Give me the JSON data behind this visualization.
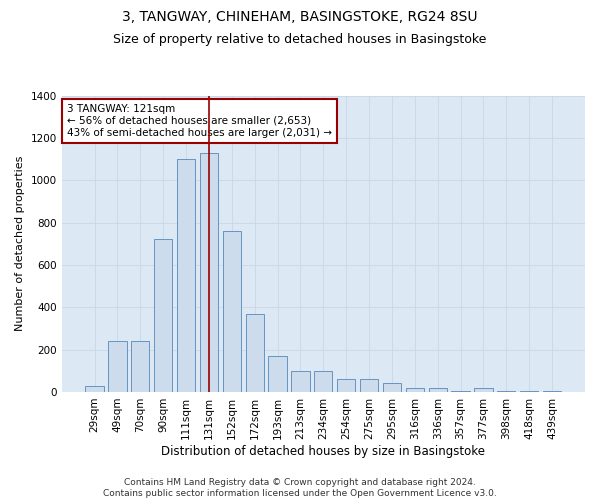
{
  "title1": "3, TANGWAY, CHINEHAM, BASINGSTOKE, RG24 8SU",
  "title2": "Size of property relative to detached houses in Basingstoke",
  "xlabel": "Distribution of detached houses by size in Basingstoke",
  "ylabel": "Number of detached properties",
  "categories": [
    "29sqm",
    "49sqm",
    "70sqm",
    "90sqm",
    "111sqm",
    "131sqm",
    "152sqm",
    "172sqm",
    "193sqm",
    "213sqm",
    "234sqm",
    "254sqm",
    "275sqm",
    "295sqm",
    "316sqm",
    "336sqm",
    "357sqm",
    "377sqm",
    "398sqm",
    "418sqm",
    "439sqm"
  ],
  "values": [
    30,
    240,
    240,
    720,
    1100,
    1130,
    760,
    370,
    170,
    100,
    100,
    60,
    60,
    40,
    20,
    20,
    5,
    20,
    5,
    5,
    5
  ],
  "bar_color": "#ccdcec",
  "bar_edge_color": "#5588bb",
  "vline_x_index": 5,
  "vline_color": "#990000",
  "annotation_text": "3 TANGWAY: 121sqm\n← 56% of detached houses are smaller (2,653)\n43% of semi-detached houses are larger (2,031) →",
  "annotation_box_facecolor": "#ffffff",
  "annotation_box_edgecolor": "#990000",
  "ylim": [
    0,
    1400
  ],
  "yticks": [
    0,
    200,
    400,
    600,
    800,
    1000,
    1200,
    1400
  ],
  "grid_color": "#c8d8e8",
  "bg_color": "#dce8f4",
  "footer": "Contains HM Land Registry data © Crown copyright and database right 2024.\nContains public sector information licensed under the Open Government Licence v3.0.",
  "title1_fontsize": 10,
  "title2_fontsize": 9,
  "xlabel_fontsize": 8.5,
  "ylabel_fontsize": 8,
  "tick_fontsize": 7.5,
  "annotation_fontsize": 7.5,
  "footer_fontsize": 6.5
}
